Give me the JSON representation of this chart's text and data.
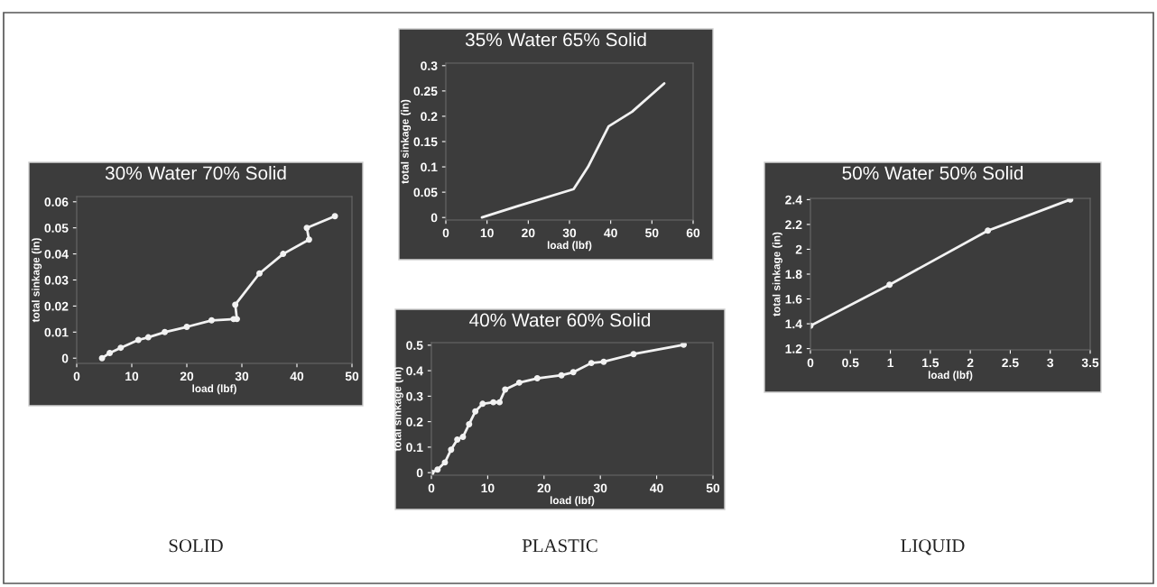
{
  "chart_data": [
    {
      "type": "line",
      "title": "30% Water 70% Solid",
      "xlabel": "load (lbf)",
      "ylabel": "total sinkage (in)",
      "color": "#f2f2f2",
      "marker": "circle",
      "line_style": "solid",
      "grid": false,
      "x": [
        4.6,
        6,
        8,
        11.2,
        13,
        16,
        20,
        24.5,
        28.5,
        29.1,
        28.8,
        33.2,
        37.5,
        42.2,
        41.8,
        46.9
      ],
      "values": [
        0,
        0.002,
        0.004,
        0.007,
        0.008,
        0.01,
        0.012,
        0.0145,
        0.015,
        0.015,
        0.0205,
        0.0325,
        0.04,
        0.0455,
        0.05,
        0.0545
      ],
      "xlim": [
        0,
        50
      ],
      "ylim": [
        -0.002,
        0.062
      ],
      "xticks": [
        0,
        10,
        20,
        30,
        40,
        50
      ],
      "yticks": [
        0,
        0.01,
        0.02,
        0.03,
        0.04,
        0.05,
        0.06
      ],
      "annotations": [
        "SOLID"
      ]
    },
    {
      "type": "line",
      "title": "35% Water 65% Solid",
      "xlabel": "load (lbf)",
      "ylabel": "total sinkage (in)",
      "color": "#f2f2f2",
      "marker": "none",
      "line_style": "solid",
      "grid": false,
      "x": [
        8.75,
        17.4,
        31,
        34.5,
        39.5,
        45.2,
        53
      ],
      "values": [
        0,
        0.0225,
        0.056,
        0.1,
        0.18,
        0.209,
        0.265
      ],
      "xlim": [
        0,
        60
      ],
      "ylim": [
        -0.005,
        0.305
      ],
      "xticks": [
        0,
        10,
        20,
        30,
        40,
        50,
        60
      ],
      "yticks": [
        0,
        0.05,
        0.1,
        0.15,
        0.2,
        0.25,
        0.3
      ]
    },
    {
      "type": "line",
      "title": "40% Water 60% Solid",
      "xlabel": "load (lbf)",
      "ylabel": "total sinkage (in)",
      "color": "#f2f2f2",
      "marker": "circle",
      "line_style": "solid",
      "grid": false,
      "x": [
        0,
        1.1,
        2.4,
        3.5,
        4.6,
        5.6,
        6.7,
        7.8,
        9.1,
        11,
        12.1,
        13.1,
        15.6,
        18.8,
        23.1,
        25.2,
        28.4,
        30.6,
        35.9,
        44.8
      ],
      "values": [
        0,
        0.012,
        0.04,
        0.09,
        0.13,
        0.14,
        0.19,
        0.24,
        0.27,
        0.276,
        0.276,
        0.326,
        0.353,
        0.37,
        0.382,
        0.394,
        0.43,
        0.435,
        0.465,
        0.502
      ],
      "xlim": [
        0,
        50
      ],
      "ylim": [
        -0.01,
        0.51
      ],
      "xticks": [
        0,
        10,
        20,
        30,
        40,
        50
      ],
      "yticks": [
        0,
        0.1,
        0.2,
        0.3,
        0.4,
        0.5
      ],
      "annotations": [
        "PLASTIC"
      ]
    },
    {
      "type": "line",
      "title": "50% Water 50% Solid",
      "xlabel": "load (lbf)",
      "ylabel": "total sinkage (in)",
      "color": "#f2f2f2",
      "marker": "circle",
      "line_style": "solid",
      "grid": false,
      "x": [
        0,
        0.99,
        2.22,
        3.25
      ],
      "values": [
        1.384,
        1.715,
        2.15,
        2.4
      ],
      "xlim": [
        0,
        3.5
      ],
      "ylim": [
        1.19,
        2.41
      ],
      "xticks": [
        0,
        0.5,
        1,
        1.5,
        2,
        2.5,
        3,
        3.5
      ],
      "yticks": [
        1.2,
        1.4,
        1.6,
        1.8,
        2,
        2.2,
        2.4
      ],
      "annotations": [
        "LIQUID"
      ]
    }
  ]
}
